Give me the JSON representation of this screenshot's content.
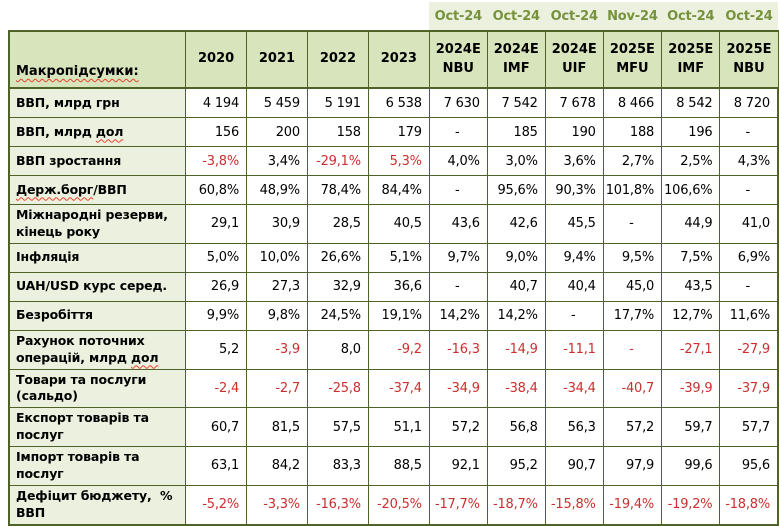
{
  "colors": {
    "border": "#4F6228",
    "header_fill": "#D7E4BC",
    "label_fill": "#EBF1DE",
    "band_fill": "#ECF0DF",
    "band_text": "#76933C",
    "negative": "#CB2F2F",
    "text": "#000000"
  },
  "forecast_dates": [
    "Oct-24",
    "Oct-24",
    "Oct-24",
    "Nov-24",
    "Oct-24",
    "Oct-24"
  ],
  "table": {
    "corner_label": "Макропідсумки:",
    "columns": [
      "2020",
      "2021",
      "2022",
      "2023",
      "2024E NBU",
      "2024E IMF",
      "2024E UIF",
      "2025E MFU",
      "2025E IMF",
      "2025E NBU"
    ],
    "rows": [
      {
        "label": "ВВП, млрд грн",
        "values": [
          "4 194",
          "5 459",
          "5 191",
          "6 538",
          "7 630",
          "7 542",
          "7 678",
          "8 466",
          "8 542",
          "8 720"
        ],
        "red": []
      },
      {
        "label": "ВВП, млрд дол",
        "spell": "дол",
        "values": [
          "156",
          "200",
          "158",
          "179",
          "-",
          "185",
          "190",
          "188",
          "196",
          "-"
        ],
        "red": []
      },
      {
        "label": "ВВП зростання",
        "values": [
          "-3,8%",
          "3,4%",
          "-29,1%",
          "5,3%",
          "4,0%",
          "3,0%",
          "3,6%",
          "2,7%",
          "2,5%",
          "4,3%"
        ],
        "red": [
          0,
          2,
          3
        ]
      },
      {
        "label": "Держ.борг/ВВП",
        "spell": "Держ.борг",
        "values": [
          "60,8%",
          "48,9%",
          "78,4%",
          "84,4%",
          "-",
          "95,6%",
          "90,3%",
          "101,8%",
          "106,6%",
          "-"
        ],
        "red": []
      },
      {
        "label": "Міжнародні резерви, кінець року",
        "values": [
          "29,1",
          "30,9",
          "28,5",
          "40,5",
          "43,6",
          "42,6",
          "45,5",
          "-",
          "44,9",
          "41,0"
        ],
        "red": []
      },
      {
        "label": "Інфляція",
        "values": [
          "5,0%",
          "10,0%",
          "26,6%",
          "5,1%",
          "9,7%",
          "9,0%",
          "9,4%",
          "9,5%",
          "7,5%",
          "6,9%"
        ],
        "red": []
      },
      {
        "label": "UAH/USD курс серед.",
        "values": [
          "26,9",
          "27,3",
          "32,9",
          "36,6",
          "-",
          "40,7",
          "40,4",
          "45,0",
          "43,5",
          "-"
        ],
        "red": []
      },
      {
        "label": "Безробіття",
        "values": [
          "9,9%",
          "9,8%",
          "24,5%",
          "19,1%",
          "14,2%",
          "14,2%",
          "-",
          "17,7%",
          "12,7%",
          "11,6%"
        ],
        "red": []
      },
      {
        "label": "Рахунок поточних операцій, млрд дол",
        "spell": "дол",
        "values": [
          "5,2",
          "-3,9",
          "8,0",
          "-9,2",
          "-16,3",
          "-14,9",
          "-11,1",
          "-",
          "-27,1",
          "-27,9"
        ],
        "red": [
          1,
          3,
          4,
          5,
          6,
          7,
          8,
          9
        ]
      },
      {
        "label": "Товари та послуги (сальдо)",
        "values": [
          "-2,4",
          "-2,7",
          "-25,8",
          "-37,4",
          "-34,9",
          "-38,4",
          "-34,4",
          "-40,7",
          "-39,9",
          "-37,9"
        ],
        "red": [
          0,
          1,
          2,
          3,
          4,
          5,
          6,
          7,
          8,
          9
        ]
      },
      {
        "label": "Експорт товарів та послуг",
        "values": [
          "60,7",
          "81,5",
          "57,5",
          "51,1",
          "57,2",
          "56,8",
          "56,3",
          "57,2",
          "59,7",
          "57,7"
        ],
        "red": []
      },
      {
        "label": "Імпорт товарів та послуг",
        "values": [
          "63,1",
          "84,2",
          "83,3",
          "88,5",
          "92,1",
          "95,2",
          "90,7",
          "97,9",
          "99,6",
          "95,6"
        ],
        "red": []
      },
      {
        "label": "Дефіцит бюджету,  % ВВП",
        "values": [
          "-5,2%",
          "-3,3%",
          "-16,3%",
          "-20,5%",
          "-17,7%",
          "-18,7%",
          "-15,8%",
          "-19,4%",
          "-19,2%",
          "-18,8%"
        ],
        "red": [
          0,
          1,
          2,
          3,
          4,
          5,
          6,
          7,
          8,
          9
        ]
      }
    ]
  }
}
